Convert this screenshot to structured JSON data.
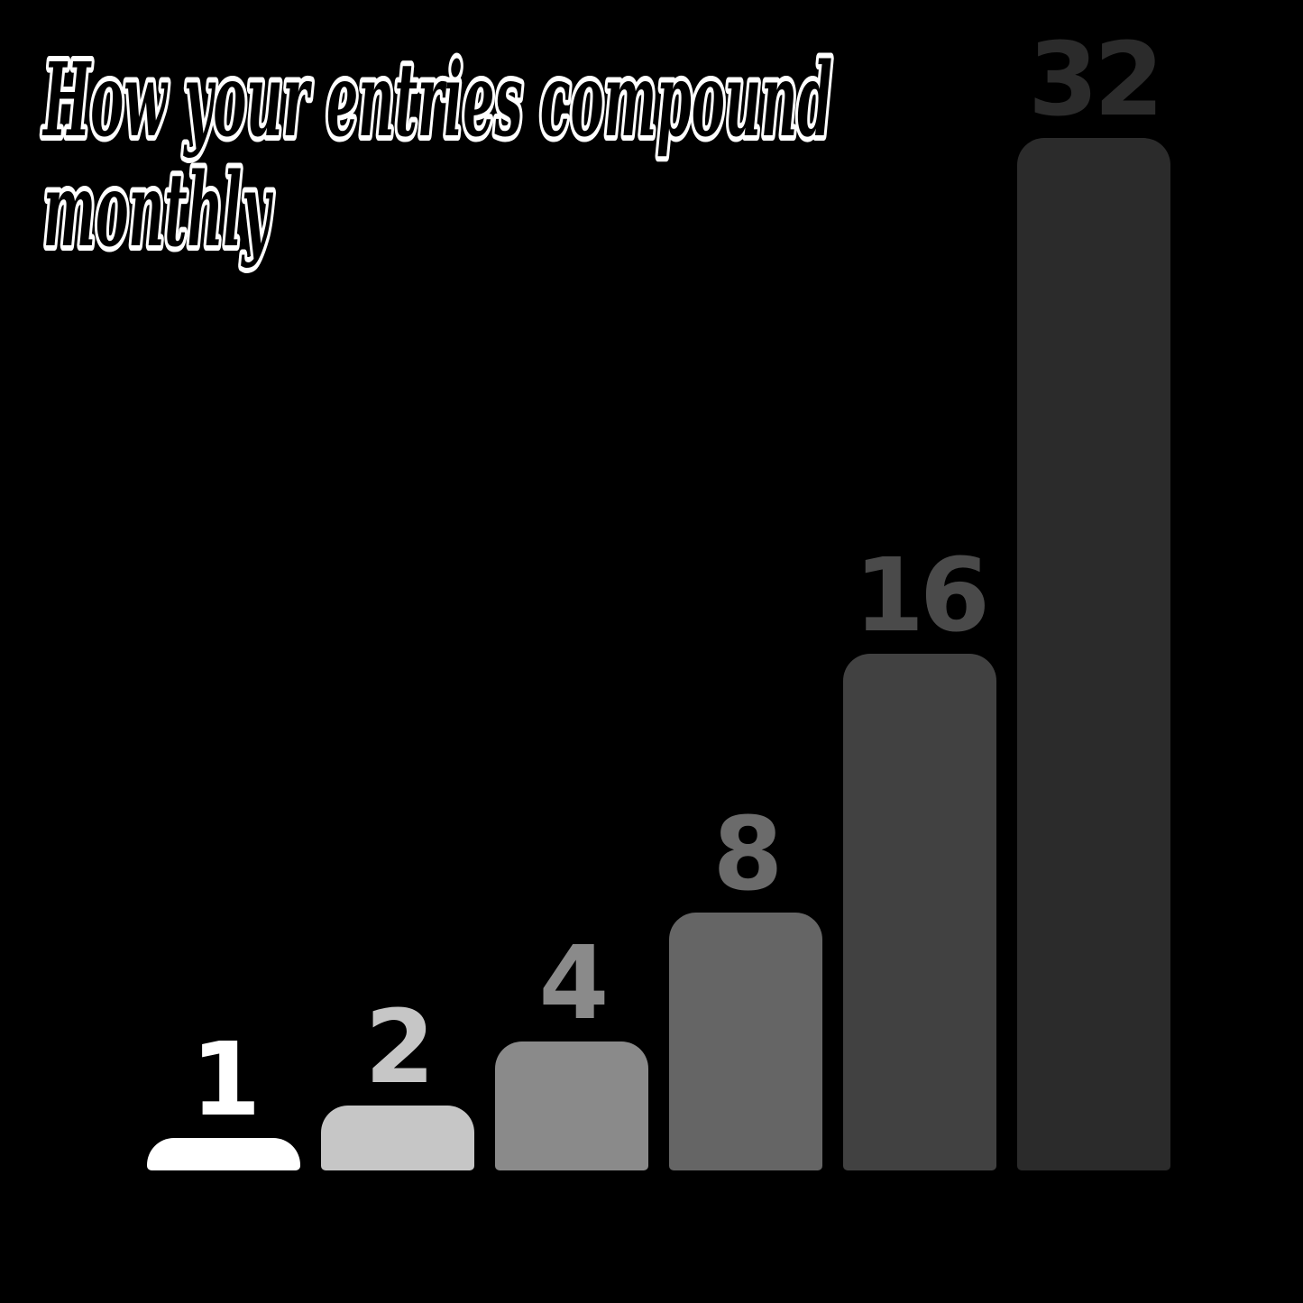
{
  "page": {
    "background": "#000000"
  },
  "title": {
    "line1": "How your entries compound",
    "line2": "monthly",
    "fill_color": "#000000",
    "outline_color": "#ffffff"
  },
  "chart_data": {
    "type": "bar",
    "title": "How your entries compound monthly",
    "values": [
      1,
      2,
      4,
      8,
      16,
      32
    ],
    "data_labels": [
      "1",
      "2",
      "4",
      "8",
      "16",
      "32"
    ],
    "bar_colors": [
      "#ffffff",
      "#c6c6c6",
      "#8a8a8a",
      "#656565",
      "#414141",
      "#2b2b2b"
    ],
    "label_colors": [
      "#ffffff",
      "#c6c6c6",
      "#8a8a8a",
      "#6b6b6b",
      "#4a4a4a",
      "#2b2b2b"
    ],
    "xlabel": "",
    "ylabel": "",
    "ylim": [
      0,
      32
    ],
    "grid": false,
    "axes_visible": false,
    "legend": false,
    "bar_label_position": "above"
  }
}
